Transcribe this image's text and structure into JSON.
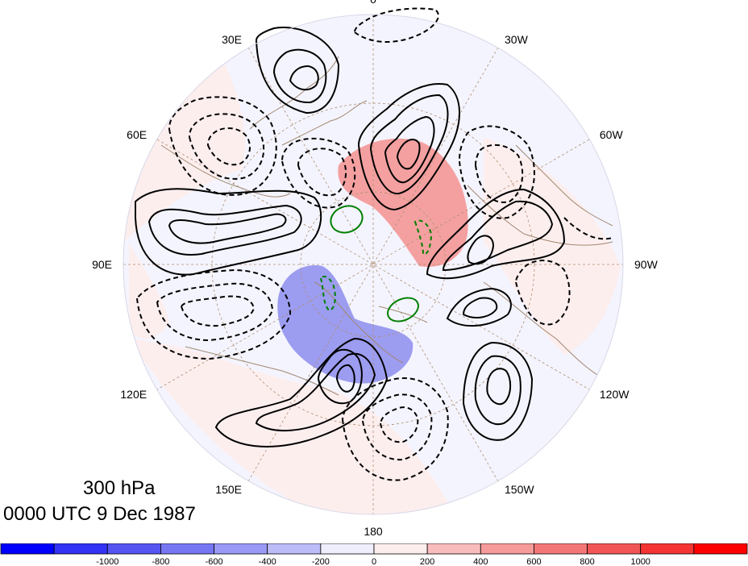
{
  "map": {
    "projection": "north-polar-stereographic",
    "longitude_labels": [
      {
        "text": "0",
        "lon": 0
      },
      {
        "text": "30W",
        "lon": -30
      },
      {
        "text": "60W",
        "lon": -60
      },
      {
        "text": "90W",
        "lon": -90
      },
      {
        "text": "120W",
        "lon": -120
      },
      {
        "text": "150W",
        "lon": -150
      },
      {
        "text": "180",
        "lon": 180
      },
      {
        "text": "150E",
        "lon": 150
      },
      {
        "text": "120E",
        "lon": 120
      },
      {
        "text": "90E",
        "lon": 90
      },
      {
        "text": "60E",
        "lon": 60
      },
      {
        "text": "30E",
        "lon": 30
      }
    ],
    "shading_colors": {
      "strong_positive": "#f4a0a0",
      "weak_positive": "#fdeeee",
      "strong_negative": "#9c9cf0",
      "weak_negative": "#eeeefd"
    },
    "contour_colors": {
      "primary": "#000000",
      "secondary": "#008000",
      "coast": "#a08870",
      "grid": "#b09070"
    }
  },
  "titles": {
    "level": "300 hPa",
    "time": "0000 UTC 9 Dec 1987"
  },
  "colorbar": {
    "colors": [
      "#0000ff",
      "#3333f4",
      "#5555f2",
      "#7777f4",
      "#9a9af6",
      "#bcbcf8",
      "#eeeefd",
      "#fdeeee",
      "#f8bcbc",
      "#f69a9a",
      "#f47777",
      "#f25555",
      "#f43333",
      "#ff0000"
    ],
    "labels": [
      "-1000",
      "-800",
      "-600",
      "-400",
      "-200",
      "0",
      "200",
      "400",
      "600",
      "800",
      "1000"
    ]
  }
}
